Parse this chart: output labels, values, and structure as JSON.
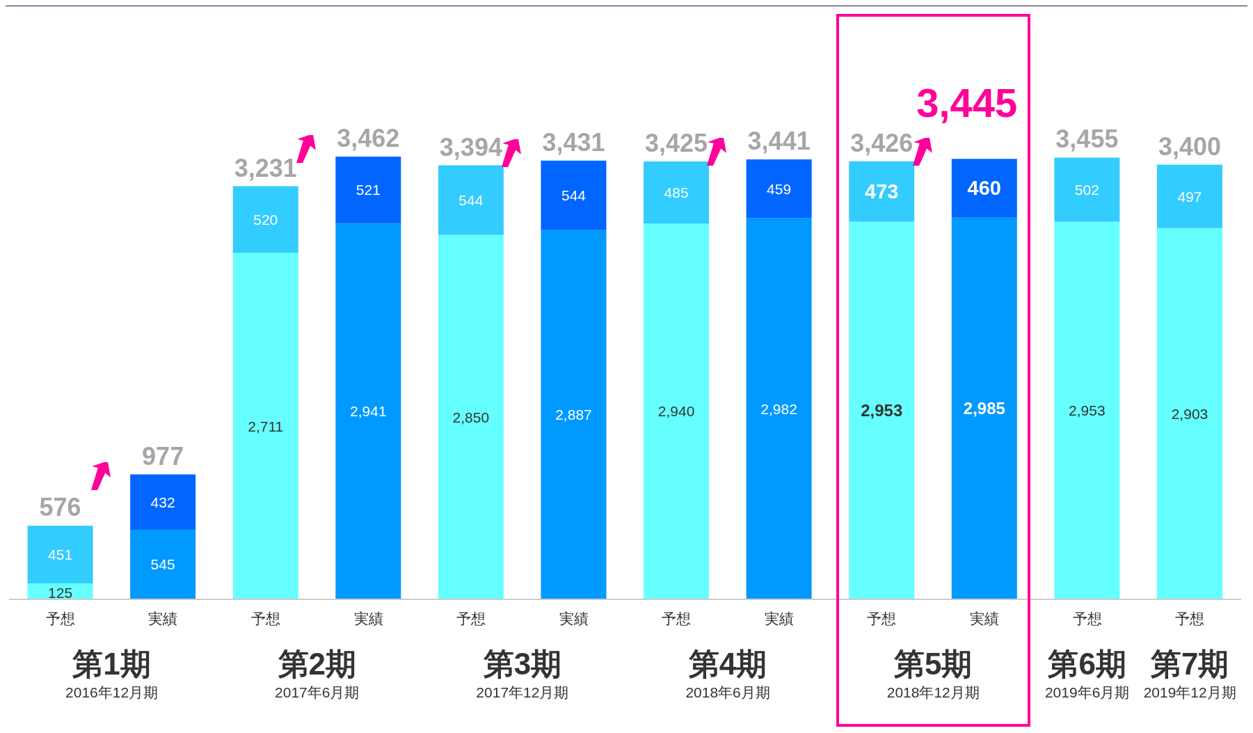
{
  "chart_data": {
    "type": "bar",
    "stacked": true,
    "legend": false,
    "grid": false,
    "categories": [
      "予想",
      "実績",
      "予想",
      "実績",
      "予想",
      "実績",
      "予想",
      "実績",
      "予想",
      "実績",
      "予想",
      "予想"
    ],
    "series": [
      {
        "colors": [
          "#66ffff",
          "#0099ff",
          "#66ffff",
          "#0099ff",
          "#66ffff",
          "#0099ff",
          "#66ffff",
          "#0099ff",
          "#66ffff",
          "#0099ff",
          "#66ffff",
          "#66ffff"
        ],
        "values": [
          125,
          545,
          2711,
          2941,
          2850,
          2887,
          2940,
          2982,
          2953,
          2985,
          2953,
          2903
        ],
        "value_labels": [
          "125",
          "545",
          "2,711",
          "2,941",
          "2,850",
          "2,887",
          "2,940",
          "2,982",
          "2,953",
          "2,985",
          "2,953",
          "2,903"
        ]
      },
      {
        "colors": [
          "#33ccff",
          "#0066ff",
          "#33ccff",
          "#0066ff",
          "#33ccff",
          "#0066ff",
          "#33ccff",
          "#0066ff",
          "#33ccff",
          "#0066ff",
          "#33ccff",
          "#33ccff"
        ],
        "values": [
          451,
          432,
          520,
          521,
          544,
          544,
          485,
          459,
          473,
          460,
          502,
          497
        ],
        "value_labels": [
          "451",
          "432",
          "520",
          "521",
          "544",
          "544",
          "485",
          "459",
          "473",
          "460",
          "502",
          "497"
        ]
      }
    ],
    "totals": [
      "576",
      "977",
      "3,231",
      "3,462",
      "3,394",
      "3,431",
      "3,425",
      "3,441",
      "3,426",
      "3,445",
      "3,455",
      "3,400"
    ],
    "annotations": [
      "第1期",
      "2016年12月期",
      "第2期",
      "2017年6月期",
      "第3期",
      "2017年12月期",
      "第4期",
      "2018年6月期",
      "第5期",
      "2018年12月期",
      "第6期",
      "2019年6月期",
      "第7期",
      "2019年12月期"
    ]
  }
}
